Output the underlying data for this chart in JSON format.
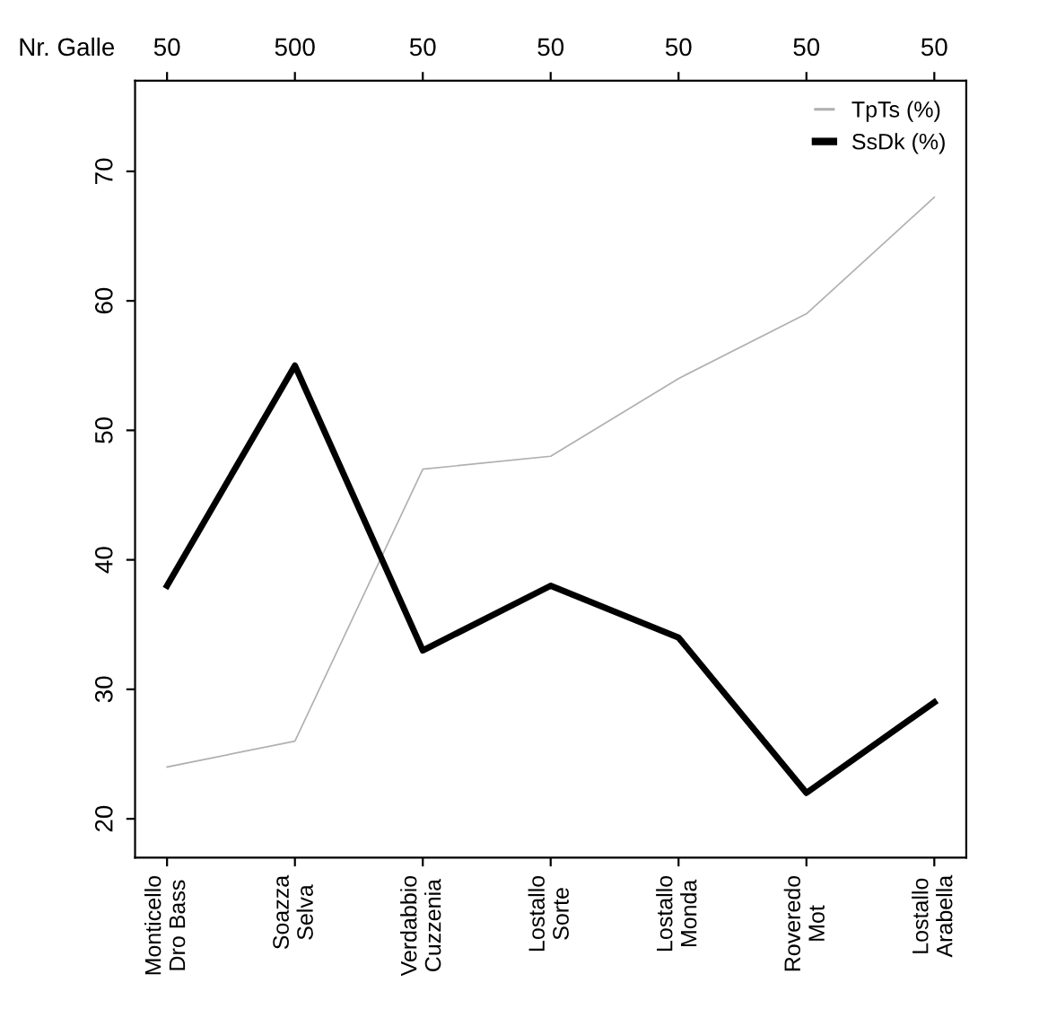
{
  "chart_data": {
    "type": "line",
    "categories": [
      "Monticello\nDro Bass",
      "Soazza\nSelva",
      "Verdabbio\nCuzzenia",
      "Lostallo\nSorte",
      "Lostallo\nMonda",
      "Roveredo\nMot",
      "Lostallo\nArabella"
    ],
    "annotations": [
      "Nr. Galle",
      {
        "text": "50",
        "x": "Monticello\nDro Bass"
      },
      {
        "text": "500",
        "x": "Soazza\nSelva"
      },
      {
        "text": "50",
        "x": "Verdabbio\nCuzzenia"
      },
      {
        "text": "50",
        "x": "Lostallo\nSorte"
      },
      {
        "text": "50",
        "x": "Lostallo\nMonda"
      },
      {
        "text": "50",
        "x": "Roveredo\nMot"
      },
      {
        "text": "50",
        "x": "Lostallo\nArabella"
      }
    ],
    "series": [
      {
        "name": "TpTs (%)",
        "color": "#b0b0b0",
        "values": [
          24,
          26,
          47,
          48,
          54,
          59,
          68
        ]
      },
      {
        "name": "SsDk (%)",
        "color": "#000000",
        "values": [
          38,
          55,
          33,
          38,
          34,
          22,
          29
        ]
      }
    ],
    "ylim": [
      17,
      77
    ],
    "yticks": [
      20,
      30,
      40,
      50,
      60,
      70
    ],
    "grid": false,
    "legend": "top right",
    "marker": "none",
    "line_style": "solid"
  }
}
